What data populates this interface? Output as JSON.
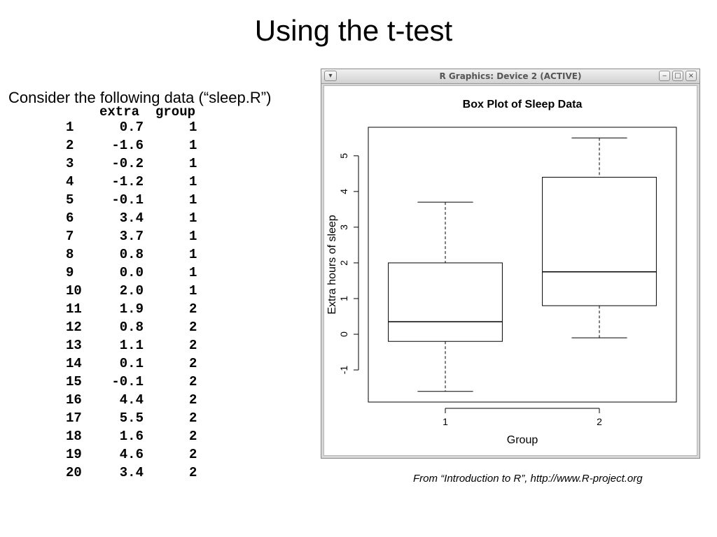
{
  "slide": {
    "title": "Using the t-test",
    "intro": "Consider the following data (“sleep.R”)",
    "source": "From “Introduction to R”, http://www.R-project.org"
  },
  "table": {
    "headers": {
      "extra": "extra",
      "group": "group"
    },
    "rows": [
      {
        "idx": "1",
        "extra": "0.7",
        "group": "1"
      },
      {
        "idx": "2",
        "extra": "-1.6",
        "group": "1"
      },
      {
        "idx": "3",
        "extra": "-0.2",
        "group": "1"
      },
      {
        "idx": "4",
        "extra": "-1.2",
        "group": "1"
      },
      {
        "idx": "5",
        "extra": "-0.1",
        "group": "1"
      },
      {
        "idx": "6",
        "extra": "3.4",
        "group": "1"
      },
      {
        "idx": "7",
        "extra": "3.7",
        "group": "1"
      },
      {
        "idx": "8",
        "extra": "0.8",
        "group": "1"
      },
      {
        "idx": "9",
        "extra": "0.0",
        "group": "1"
      },
      {
        "idx": "10",
        "extra": "2.0",
        "group": "1"
      },
      {
        "idx": "11",
        "extra": "1.9",
        "group": "2"
      },
      {
        "idx": "12",
        "extra": "0.8",
        "group": "2"
      },
      {
        "idx": "13",
        "extra": "1.1",
        "group": "2"
      },
      {
        "idx": "14",
        "extra": "0.1",
        "group": "2"
      },
      {
        "idx": "15",
        "extra": "-0.1",
        "group": "2"
      },
      {
        "idx": "16",
        "extra": "4.4",
        "group": "2"
      },
      {
        "idx": "17",
        "extra": "5.5",
        "group": "2"
      },
      {
        "idx": "18",
        "extra": "1.6",
        "group": "2"
      },
      {
        "idx": "19",
        "extra": "4.6",
        "group": "2"
      },
      {
        "idx": "20",
        "extra": "3.4",
        "group": "2"
      }
    ]
  },
  "window": {
    "title": "R Graphics: Device 2 (ACTIVE)",
    "icons": {
      "menu": "chevron-down-icon",
      "minimize": "minimize-icon",
      "maximize": "maximize-icon",
      "close": "close-icon"
    }
  },
  "chart_data": {
    "type": "box",
    "title": "Box Plot of Sleep Data",
    "xlabel": "Group",
    "ylabel": "Extra hours of sleep",
    "categories": [
      "1",
      "2"
    ],
    "boxes": [
      {
        "category": "1",
        "min": -1.6,
        "q1": -0.2,
        "median": 0.35,
        "q3": 2.0,
        "max": 3.7
      },
      {
        "category": "2",
        "min": -0.1,
        "q1": 0.8,
        "median": 1.75,
        "q3": 4.4,
        "max": 5.5
      }
    ],
    "yticks": [
      -1,
      0,
      1,
      2,
      3,
      4,
      5
    ],
    "ylim": [
      -1.9,
      5.8
    ],
    "grid": false,
    "legend": "none"
  }
}
